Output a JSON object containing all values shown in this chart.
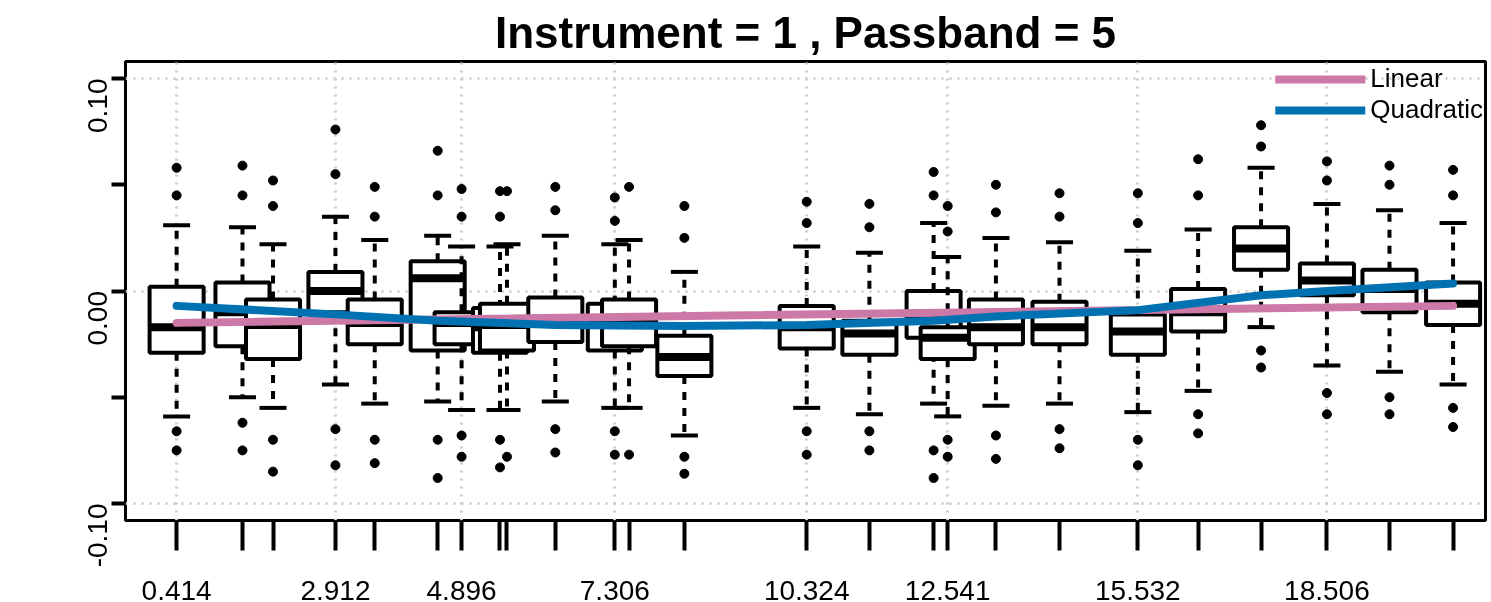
{
  "chart_data": {
    "type": "box",
    "title": "Instrument = 1 , Passband = 5",
    "x": [
      0.414,
      1.45,
      1.93,
      2.912,
      3.53,
      4.52,
      4.896,
      5.5,
      5.61,
      6.37,
      7.306,
      7.53,
      8.4,
      10.324,
      11.31,
      12.32,
      12.541,
      13.3,
      14.3,
      15.532,
      16.48,
      17.47,
      18.506,
      19.49,
      20.49
    ],
    "boxes": [
      {
        "low": -0.059,
        "q1": -0.029,
        "median": -0.017,
        "q3": 0.002,
        "high": 0.031,
        "outliers": [
          0.058,
          0.045,
          -0.066,
          -0.075
        ]
      },
      {
        "low": -0.05,
        "q1": -0.026,
        "median": -0.01,
        "q3": 0.004,
        "high": 0.03,
        "outliers": [
          0.059,
          0.045,
          -0.062,
          -0.075
        ]
      },
      {
        "low": -0.055,
        "q1": -0.032,
        "median": -0.016,
        "q3": -0.004,
        "high": 0.022,
        "outliers": [
          0.052,
          0.04,
          -0.07,
          -0.085
        ]
      },
      {
        "low": -0.044,
        "q1": -0.01,
        "median": 0.0,
        "q3": 0.009,
        "high": 0.035,
        "outliers": [
          0.076,
          0.055,
          -0.065,
          -0.082
        ]
      },
      {
        "low": -0.053,
        "q1": -0.025,
        "median": -0.015,
        "q3": -0.004,
        "high": 0.024,
        "outliers": [
          0.049,
          0.035,
          -0.07,
          -0.081
        ]
      },
      {
        "low": -0.052,
        "q1": -0.028,
        "median": 0.006,
        "q3": 0.014,
        "high": 0.026,
        "outliers": [
          0.066,
          0.045,
          -0.07,
          -0.088
        ]
      },
      {
        "low": -0.056,
        "q1": -0.025,
        "median": -0.015,
        "q3": -0.01,
        "high": 0.021,
        "outliers": [
          0.048,
          0.035,
          -0.068,
          -0.078
        ]
      },
      {
        "low": -0.056,
        "q1": -0.029,
        "median": -0.017,
        "q3": -0.008,
        "high": 0.021,
        "outliers": [
          0.047,
          0.035,
          -0.07,
          -0.083
        ]
      },
      {
        "low": -0.056,
        "q1": -0.028,
        "median": -0.016,
        "q3": -0.006,
        "high": 0.022,
        "outliers": [
          0.047,
          -0.078
        ]
      },
      {
        "low": -0.052,
        "q1": -0.024,
        "median": -0.013,
        "q3": -0.003,
        "high": 0.026,
        "outliers": [
          0.049,
          0.038,
          -0.065,
          -0.076
        ]
      },
      {
        "low": -0.055,
        "q1": -0.028,
        "median": -0.015,
        "q3": -0.006,
        "high": 0.022,
        "outliers": [
          0.044,
          0.033,
          -0.066,
          -0.077
        ]
      },
      {
        "low": -0.055,
        "q1": -0.026,
        "median": -0.014,
        "q3": -0.004,
        "high": 0.024,
        "outliers": [
          0.049,
          -0.077
        ]
      },
      {
        "low": -0.068,
        "q1": -0.04,
        "median": -0.031,
        "q3": -0.021,
        "high": 0.009,
        "outliers": [
          0.04,
          0.025,
          -0.078,
          -0.086
        ]
      },
      {
        "low": -0.055,
        "q1": -0.027,
        "median": -0.017,
        "q3": -0.007,
        "high": 0.021,
        "outliers": [
          0.042,
          0.032,
          -0.066,
          -0.077
        ]
      },
      {
        "low": -0.058,
        "q1": -0.03,
        "median": -0.02,
        "q3": -0.014,
        "high": 0.018,
        "outliers": [
          0.041,
          0.03,
          -0.066,
          -0.075
        ]
      },
      {
        "low": -0.053,
        "q1": -0.022,
        "median": -0.013,
        "q3": 0.0,
        "high": 0.032,
        "outliers": [
          0.056,
          0.045,
          -0.075,
          -0.088
        ]
      },
      {
        "low": -0.059,
        "q1": -0.032,
        "median": -0.022,
        "q3": -0.017,
        "high": 0.016,
        "outliers": [
          0.04,
          0.028,
          -0.07,
          -0.078
        ]
      },
      {
        "low": -0.054,
        "q1": -0.025,
        "median": -0.017,
        "q3": -0.004,
        "high": 0.025,
        "outliers": [
          0.05,
          0.037,
          -0.068,
          -0.079
        ]
      },
      {
        "low": -0.053,
        "q1": -0.025,
        "median": -0.017,
        "q3": -0.005,
        "high": 0.023,
        "outliers": [
          0.046,
          0.035,
          -0.065,
          -0.074
        ]
      },
      {
        "low": -0.057,
        "q1": -0.03,
        "median": -0.019,
        "q3": -0.011,
        "high": 0.019,
        "outliers": [
          0.046,
          0.032,
          -0.07,
          -0.082
        ]
      },
      {
        "low": -0.047,
        "q1": -0.019,
        "median": -0.01,
        "q3": 0.001,
        "high": 0.029,
        "outliers": [
          0.062,
          0.045,
          -0.058,
          -0.067
        ]
      },
      {
        "low": -0.017,
        "q1": 0.01,
        "median": 0.02,
        "q3": 0.03,
        "high": 0.058,
        "outliers": [
          0.078,
          0.068,
          -0.028,
          -0.036
        ]
      },
      {
        "low": -0.035,
        "q1": -0.002,
        "median": 0.005,
        "q3": 0.013,
        "high": 0.041,
        "outliers": [
          0.061,
          0.052,
          -0.048,
          -0.058
        ]
      },
      {
        "low": -0.038,
        "q1": -0.01,
        "median": 0.001,
        "q3": 0.01,
        "high": 0.038,
        "outliers": [
          0.059,
          0.05,
          -0.05,
          -0.058
        ]
      },
      {
        "low": -0.044,
        "q1": -0.016,
        "median": -0.006,
        "q3": 0.004,
        "high": 0.032,
        "outliers": [
          0.057,
          0.045,
          -0.055,
          -0.064
        ]
      }
    ],
    "series": [
      {
        "name": "Linear",
        "type": "line",
        "color": "#cc79a7",
        "x": [
          0.414,
          20.49
        ],
        "values": [
          -0.015,
          -0.007
        ]
      },
      {
        "name": "Quadratic",
        "type": "line",
        "color": "#0072b2",
        "x": [
          0.414,
          2.912,
          4.52,
          6.37,
          8.4,
          10.324,
          12.32,
          13.3,
          15.532,
          17.47,
          18.506,
          20.49
        ],
        "values": [
          -0.007,
          -0.011,
          -0.014,
          -0.016,
          -0.0165,
          -0.016,
          -0.014,
          -0.012,
          -0.009,
          -0.002,
          0.0,
          0.0035
        ]
      }
    ],
    "xlim": [
      -0.39,
      21.0
    ],
    "xticks": [
      0.414,
      2.912,
      4.896,
      7.306,
      10.324,
      12.541,
      15.532,
      18.506
    ],
    "ylim": [
      -0.108,
      0.108
    ],
    "yticks": [
      {
        "value": -0.1,
        "label": "-0.10"
      },
      {
        "value": -0.05,
        "label": null
      },
      {
        "value": 0.0,
        "label": "0.00"
      },
      {
        "value": 0.05,
        "label": null
      },
      {
        "value": 0.1,
        "label": "0.10"
      }
    ],
    "grid": true,
    "legend": "top right"
  }
}
